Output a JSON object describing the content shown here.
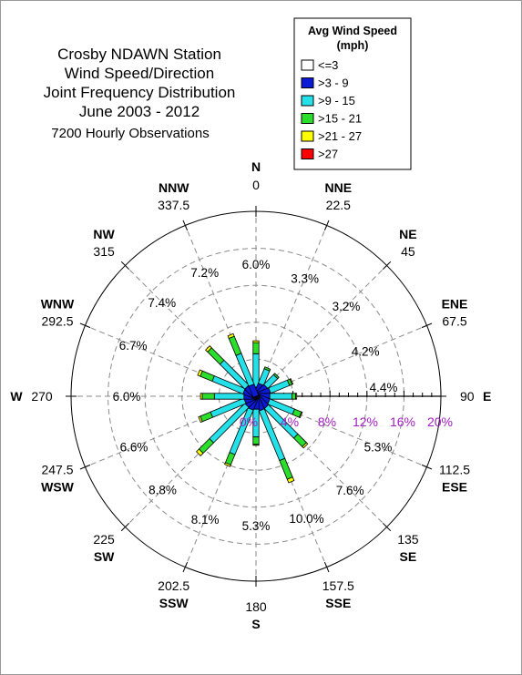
{
  "chart_data": {
    "type": "wind-rose",
    "title_lines": [
      "Crosby NDAWN Station",
      "Wind Speed/Direction",
      "Joint Frequency Distribution",
      "June 2003 - 2012"
    ],
    "observations": "7200 Hourly Observations",
    "legend": {
      "title_lines": [
        "Avg Wind Speed",
        "(mph)"
      ],
      "items": [
        {
          "label": "<=3",
          "color": "#ffffff"
        },
        {
          "label": ">3 - 9",
          "color": "#0a1ad6"
        },
        {
          "label": ">9 - 15",
          "color": "#24e0e8"
        },
        {
          "label": ">15 - 21",
          "color": "#2cde2c"
        },
        {
          "label": ">21 - 27",
          "color": "#ffff00"
        },
        {
          "label": ">27",
          "color": "#ff0000"
        }
      ]
    },
    "radial_scale": {
      "max": 20,
      "rings": [
        4,
        8,
        12,
        16,
        20
      ],
      "labels": [
        "0%",
        "4%",
        "8%",
        "12%",
        "16%",
        "20%"
      ]
    },
    "directions": [
      {
        "name": "N",
        "deg": "0",
        "angle": 0,
        "freq": "6.0%",
        "segments": [
          1.0,
          3.6,
          1.2,
          0.2,
          0
        ]
      },
      {
        "name": "NNE",
        "deg": "22.5",
        "angle": 22.5,
        "freq": "3.3%",
        "segments": [
          1.4,
          1.7,
          0.2,
          0,
          0
        ]
      },
      {
        "name": "NE",
        "deg": "45",
        "angle": 45,
        "freq": "3.2%",
        "segments": [
          1.5,
          1.5,
          0.2,
          0,
          0
        ]
      },
      {
        "name": "ENE",
        "deg": "67.5",
        "angle": 67.5,
        "freq": "4.2%",
        "segments": [
          1.6,
          2.2,
          0.3,
          0.1,
          0
        ]
      },
      {
        "name": "E",
        "deg": "90",
        "angle": 90,
        "freq": "4.4%",
        "segments": [
          1.5,
          2.4,
          0.4,
          0.1,
          0
        ]
      },
      {
        "name": "ESE",
        "deg": "112.5",
        "angle": 112.5,
        "freq": "5.3%",
        "segments": [
          1.5,
          2.9,
          0.8,
          0.1,
          0
        ]
      },
      {
        "name": "SE",
        "deg": "135",
        "angle": 135,
        "freq": "7.6%",
        "segments": [
          1.6,
          4.5,
          1.3,
          0.2,
          0
        ]
      },
      {
        "name": "SSE",
        "deg": "157.5",
        "angle": 157.5,
        "freq": "10.0%",
        "segments": [
          1.6,
          5.8,
          2.2,
          0.4,
          0
        ]
      },
      {
        "name": "S",
        "deg": "180",
        "angle": 180,
        "freq": "5.3%",
        "segments": [
          1.4,
          3.0,
          0.8,
          0.1,
          0
        ]
      },
      {
        "name": "SSW",
        "deg": "202.5",
        "angle": 202.5,
        "freq": "8.1%",
        "segments": [
          1.5,
          5.2,
          1.2,
          0.2,
          0
        ]
      },
      {
        "name": "SW",
        "deg": "225",
        "angle": 225,
        "freq": "8.8%",
        "segments": [
          1.4,
          5.4,
          1.6,
          0.4,
          0
        ]
      },
      {
        "name": "WSW",
        "deg": "247.5",
        "angle": 247.5,
        "freq": "6.6%",
        "segments": [
          1.3,
          3.9,
          1.2,
          0.2,
          0
        ]
      },
      {
        "name": "W",
        "deg": "270",
        "angle": 270,
        "freq": "6.0%",
        "segments": [
          1.3,
          3.2,
          1.3,
          0.2,
          0
        ]
      },
      {
        "name": "WNW",
        "deg": "292.5",
        "angle": 292.5,
        "freq": "6.7%",
        "segments": [
          1.4,
          3.6,
          1.4,
          0.3,
          0
        ]
      },
      {
        "name": "NW",
        "deg": "315",
        "angle": 315,
        "freq": "7.4%",
        "segments": [
          1.4,
          3.8,
          1.9,
          0.3,
          0
        ]
      },
      {
        "name": "NNW",
        "deg": "337.5",
        "angle": 337.5,
        "freq": "7.2%",
        "segments": [
          1.3,
          3.6,
          2.0,
          0.3,
          0
        ]
      }
    ]
  }
}
